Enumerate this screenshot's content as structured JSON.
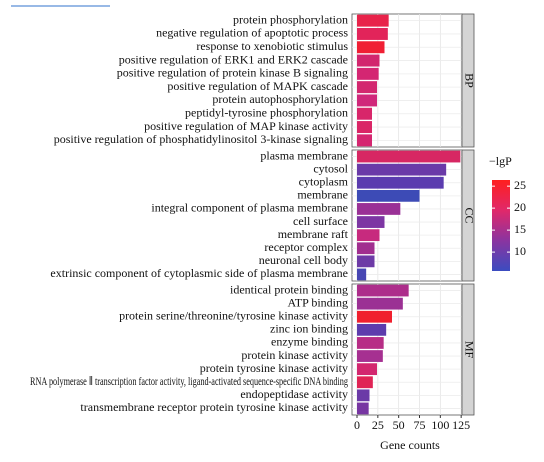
{
  "chart_data": {
    "type": "bar",
    "orientation": "horizontal",
    "xlabel": "Gene counts",
    "xlim": [
      -6,
      126
    ],
    "xticks": [
      0,
      25,
      50,
      75,
      100,
      125
    ],
    "grid": true,
    "facets": [
      {
        "label": "BP",
        "categories": [
          "protein phosphorylation",
          "negative regulation of apoptotic process",
          "response to xenobiotic stimulus",
          "positive regulation of ERK1 and ERK2 cascade",
          "positive regulation of protein kinase B signaling",
          "positive regulation of MAPK cascade",
          "protein autophosphorylation",
          "peptidyl-tyrosine phosphorylation",
          "positive regulation of MAP kinase activity",
          "positive regulation of phosphatidylinositol 3-kinase signaling"
        ],
        "values": [
          38,
          37,
          33,
          27,
          26,
          24,
          24,
          18,
          18,
          18
        ],
        "colors": [
          "#e8234a",
          "#e2245a",
          "#f01f34",
          "#d2266e",
          "#d42672",
          "#d3276f",
          "#d0277a",
          "#d8266a",
          "#da2566",
          "#d52670"
        ]
      },
      {
        "label": "CC",
        "categories": [
          "plasma membrane",
          "cytosol",
          "cytoplasm",
          "membrane",
          "integral component of plasma membrane",
          "cell surface",
          "membrane raft",
          "receptor complex",
          "neuronal cell body",
          "extrinsic component of cytoplasmic side of plasma membrane"
        ],
        "values": [
          124,
          107,
          104,
          75,
          52,
          33,
          27,
          21,
          21,
          11
        ],
        "colors": [
          "#d72763",
          "#6a3aa8",
          "#5b3caf",
          "#3d4bb6",
          "#9a3196",
          "#7d36a3",
          "#c72a7e",
          "#a12e8f",
          "#6d3aa6",
          "#4746b3"
        ]
      },
      {
        "label": "MF",
        "categories": [
          "identical protein binding",
          "ATP binding",
          "protein serine/threonine/tyrosine kinase activity",
          "zinc ion binding",
          "enzyme binding",
          "protein kinase activity",
          "protein tyrosine kinase activity",
          "RNA polymerase Ⅱ transcription factor activity, ligand-activated sequence-specific DNA binding",
          "endopeptidase activity",
          "transmembrane receptor protein tyrosine kinase activity"
        ],
        "values": [
          62,
          55,
          42,
          35,
          32,
          31,
          24,
          19,
          15,
          14
        ],
        "colors": [
          "#ad2d8b",
          "#9b3194",
          "#f0202e",
          "#5d3cad",
          "#b72d86",
          "#a63091",
          "#d3276f",
          "#e02455",
          "#6b3aa7",
          "#7736a2"
        ]
      }
    ],
    "colorbar": {
      "title": "−lgP",
      "lim": [
        5.7,
        26.4
      ],
      "ticks": [
        10,
        15,
        20,
        25
      ],
      "colors": [
        "#3b4cc0",
        "#8a34a0",
        "#e0286a",
        "#ff1f1f"
      ]
    }
  }
}
